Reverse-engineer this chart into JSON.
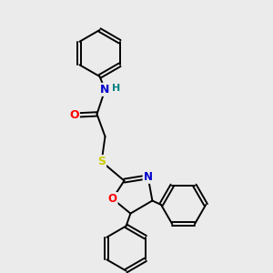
{
  "background_color": "#ebebeb",
  "bond_color": "#000000",
  "atom_colors": {
    "N": "#0000cc",
    "O": "#ff0000",
    "S": "#cccc00",
    "H": "#008080",
    "C": "#000000"
  },
  "figsize": [
    3.0,
    3.0
  ],
  "dpi": 100
}
